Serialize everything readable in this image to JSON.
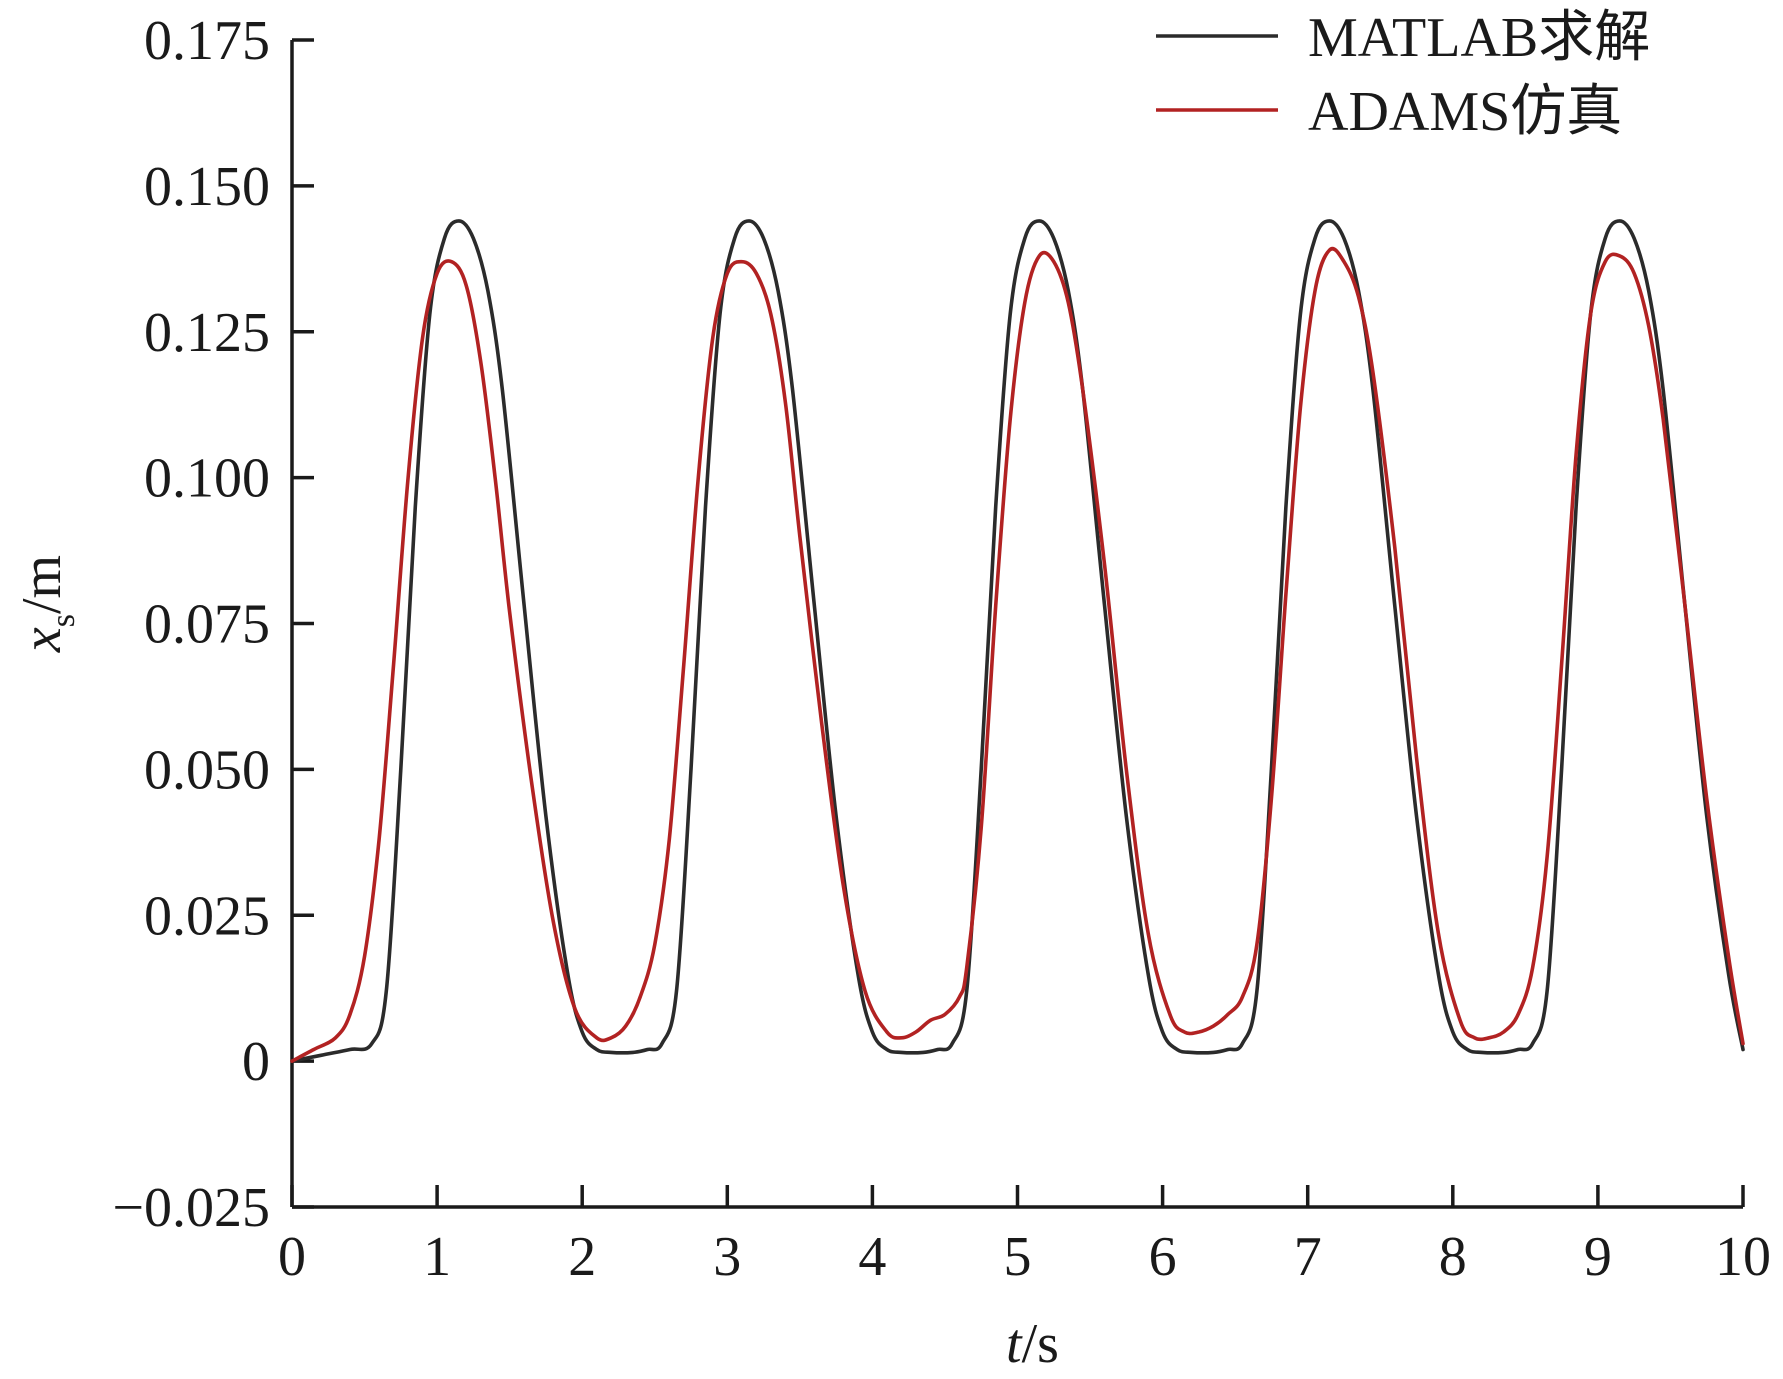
{
  "chart_data": {
    "type": "line",
    "xlabel": {
      "var": "t",
      "unit": "/s"
    },
    "ylabel": {
      "var": "x",
      "sub": "s",
      "unit": "/m"
    },
    "xlim": [
      0,
      10
    ],
    "ylim": [
      -0.025,
      0.175
    ],
    "xticks": [
      0,
      1,
      2,
      3,
      4,
      5,
      6,
      7,
      8,
      9,
      10
    ],
    "xtick_labels": [
      "0",
      "1",
      "2",
      "3",
      "4",
      "5",
      "6",
      "7",
      "8",
      "9",
      "10"
    ],
    "yticks": [
      -0.025,
      0,
      0.025,
      0.05,
      0.075,
      0.1,
      0.125,
      0.15,
      0.175
    ],
    "ytick_labels": [
      "−0.025",
      "0",
      "0.025",
      "0.050",
      "0.075",
      "0.100",
      "0.125",
      "0.150",
      "0.175"
    ],
    "grid": false,
    "legend_position": "top-right",
    "series": [
      {
        "name": "MATLAB求解",
        "color": "#2b2b2b",
        "x": [
          0,
          0.2,
          0.4,
          0.55,
          0.65,
          0.75,
          0.85,
          0.95,
          1.05,
          1.15,
          1.25,
          1.35,
          1.45,
          1.6,
          1.75,
          1.9,
          2.0,
          2.1,
          2.2,
          2.35,
          2.45,
          2.55,
          2.65,
          2.75,
          2.85,
          2.95,
          3.05,
          3.15,
          3.25,
          3.35,
          3.45,
          3.6,
          3.75,
          3.9,
          4.0,
          4.1,
          4.2,
          4.35,
          4.45,
          4.55,
          4.65,
          4.75,
          4.85,
          4.95,
          5.05,
          5.15,
          5.25,
          5.35,
          5.45,
          5.6,
          5.75,
          5.9,
          6.0,
          6.1,
          6.2,
          6.35,
          6.45,
          6.55,
          6.65,
          6.75,
          6.85,
          6.95,
          7.05,
          7.15,
          7.25,
          7.35,
          7.45,
          7.6,
          7.75,
          7.9,
          8.0,
          8.1,
          8.2,
          8.35,
          8.45,
          8.55,
          8.65,
          8.75,
          8.85,
          8.95,
          9.05,
          9.15,
          9.25,
          9.35,
          9.45,
          9.6,
          9.75,
          9.9,
          10.0
        ],
        "y": [
          0,
          0.001,
          0.002,
          0.003,
          0.012,
          0.05,
          0.095,
          0.128,
          0.141,
          0.144,
          0.141,
          0.132,
          0.115,
          0.078,
          0.042,
          0.015,
          0.005,
          0.002,
          0.0015,
          0.0015,
          0.002,
          0.003,
          0.012,
          0.05,
          0.095,
          0.128,
          0.141,
          0.144,
          0.141,
          0.132,
          0.115,
          0.078,
          0.042,
          0.015,
          0.005,
          0.002,
          0.0015,
          0.0015,
          0.002,
          0.003,
          0.012,
          0.05,
          0.095,
          0.128,
          0.141,
          0.144,
          0.141,
          0.132,
          0.115,
          0.078,
          0.042,
          0.015,
          0.005,
          0.002,
          0.0015,
          0.0015,
          0.002,
          0.003,
          0.012,
          0.05,
          0.095,
          0.128,
          0.141,
          0.144,
          0.141,
          0.132,
          0.115,
          0.078,
          0.042,
          0.015,
          0.005,
          0.002,
          0.0015,
          0.0015,
          0.002,
          0.003,
          0.012,
          0.05,
          0.095,
          0.128,
          0.141,
          0.144,
          0.141,
          0.132,
          0.115,
          0.078,
          0.042,
          0.015,
          0.002
        ]
      },
      {
        "name": "ADAMS仿真",
        "color": "#b22222",
        "x": [
          0,
          0.15,
          0.3,
          0.4,
          0.5,
          0.6,
          0.7,
          0.8,
          0.9,
          1.0,
          1.1,
          1.2,
          1.3,
          1.4,
          1.5,
          1.65,
          1.8,
          1.95,
          2.1,
          2.2,
          2.3,
          2.4,
          2.5,
          2.6,
          2.7,
          2.8,
          2.9,
          3.0,
          3.1,
          3.2,
          3.3,
          3.4,
          3.5,
          3.65,
          3.8,
          3.95,
          4.1,
          4.2,
          4.3,
          4.4,
          4.5,
          4.6,
          4.65,
          4.75,
          4.85,
          4.95,
          5.05,
          5.15,
          5.25,
          5.35,
          5.45,
          5.6,
          5.75,
          5.9,
          6.05,
          6.15,
          6.25,
          6.35,
          6.45,
          6.55,
          6.65,
          6.75,
          6.85,
          6.95,
          7.05,
          7.15,
          7.25,
          7.35,
          7.45,
          7.6,
          7.75,
          7.9,
          8.05,
          8.15,
          8.25,
          8.35,
          8.45,
          8.55,
          8.65,
          8.75,
          8.85,
          8.95,
          9.05,
          9.15,
          9.25,
          9.35,
          9.45,
          9.6,
          9.75,
          9.9,
          10.0
        ],
        "y": [
          0,
          0.002,
          0.004,
          0.008,
          0.018,
          0.038,
          0.068,
          0.1,
          0.124,
          0.135,
          0.137,
          0.133,
          0.12,
          0.1,
          0.077,
          0.048,
          0.024,
          0.009,
          0.004,
          0.004,
          0.006,
          0.011,
          0.02,
          0.038,
          0.068,
          0.1,
          0.124,
          0.135,
          0.137,
          0.135,
          0.128,
          0.113,
          0.09,
          0.058,
          0.03,
          0.012,
          0.005,
          0.004,
          0.005,
          0.007,
          0.008,
          0.011,
          0.016,
          0.04,
          0.078,
          0.11,
          0.13,
          0.138,
          0.137,
          0.13,
          0.115,
          0.085,
          0.05,
          0.022,
          0.008,
          0.005,
          0.005,
          0.006,
          0.008,
          0.011,
          0.02,
          0.045,
          0.08,
          0.112,
          0.132,
          0.139,
          0.137,
          0.131,
          0.118,
          0.088,
          0.052,
          0.022,
          0.007,
          0.004,
          0.004,
          0.005,
          0.008,
          0.016,
          0.035,
          0.068,
          0.104,
          0.128,
          0.137,
          0.138,
          0.135,
          0.126,
          0.11,
          0.078,
          0.045,
          0.018,
          0.003
        ]
      }
    ]
  }
}
